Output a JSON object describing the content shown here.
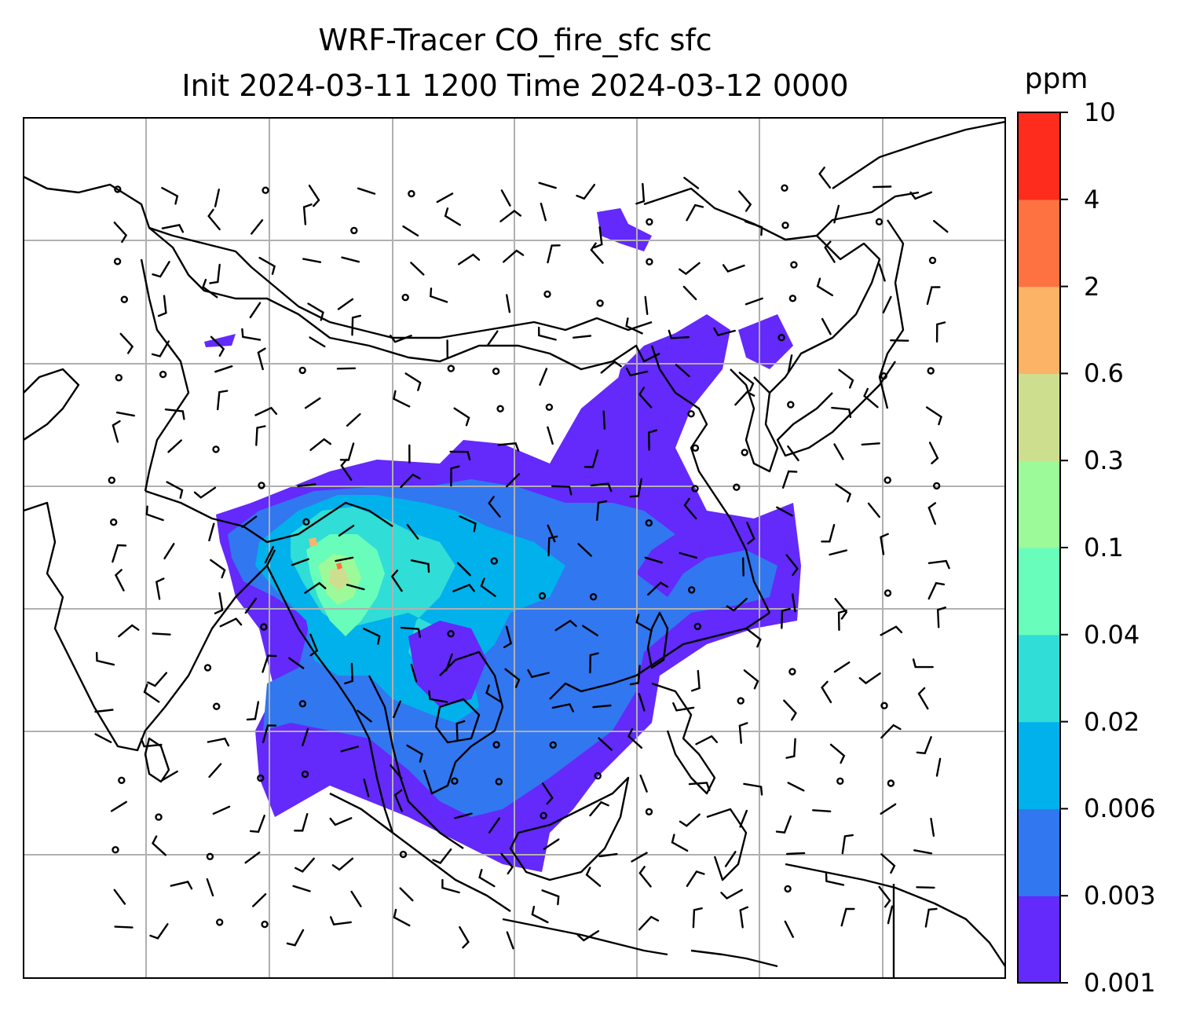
{
  "title": {
    "line1": "WRF-Tracer CO_fire_sfc sfc",
    "line2": "Init 2024-03-11 1200 Time 2024-03-12 0000"
  },
  "colorbar": {
    "unit": "ppm",
    "levels": [
      "0.001",
      "0.003",
      "0.006",
      "0.02",
      "0.04",
      "0.1",
      "0.3",
      "0.6",
      "2",
      "4",
      "10"
    ],
    "colors": [
      "#6429fb",
      "#3177f0",
      "#00b1eb",
      "#30ddd7",
      "#68fdbb",
      "#9dfa98",
      "#cddf8e",
      "#fcb366",
      "#fe7241",
      "#fd2c1c"
    ]
  },
  "map": {
    "background": "#ffffff",
    "coastline_color": "#000000",
    "grid_color": "#b0b0b0",
    "barb_color": "#000000"
  }
}
